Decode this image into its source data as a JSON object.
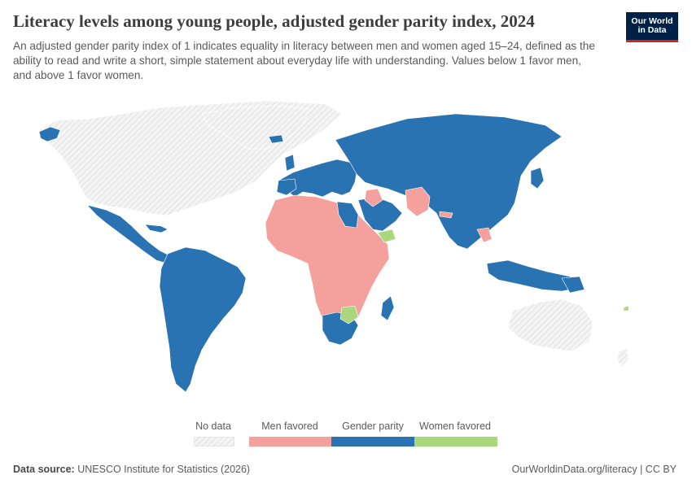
{
  "header": {
    "title": "Literacy levels among young people, adjusted gender parity index, 2024",
    "subtitle": "An adjusted gender parity index of 1 indicates equality in literacy between men and women aged 15–24, defined as the ability to read and write a short, simple statement about everyday life with understanding. Values below 1 favor men, and above 1 favor women."
  },
  "logo": {
    "line1": "Our World",
    "line2": "in Data"
  },
  "legend": {
    "no_data": "No data",
    "men_favored": "Men favored",
    "gender_parity": "Gender parity",
    "women_favored": "Women favored"
  },
  "colors": {
    "men_favored": "#f4a09c",
    "gender_parity": "#2a73b2",
    "women_favored": "#a8d77d",
    "no_data": "#f0f0f0"
  },
  "footer": {
    "source_label": "Data source:",
    "source_text": "UNESCO Institute for Statistics (2026)",
    "url_license": "OurWorldinData.org/literacy | CC BY"
  }
}
